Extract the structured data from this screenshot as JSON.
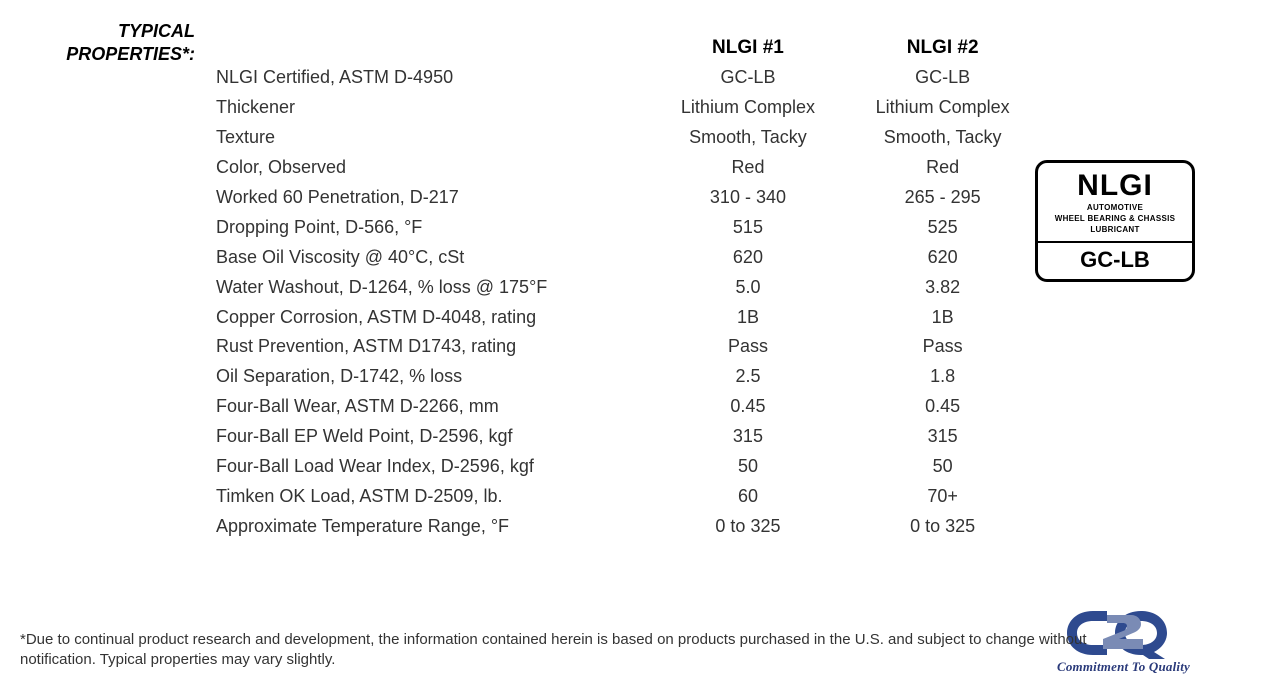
{
  "section_title": "TYPICAL PROPERTIES*:",
  "table": {
    "columns": [
      "NLGI #1",
      "NLGI #2"
    ],
    "rows": [
      {
        "property": "NLGI Certified, ASTM D-4950",
        "v1": "GC-LB",
        "v2": "GC-LB"
      },
      {
        "property": "Thickener",
        "v1": "Lithium Complex",
        "v2": "Lithium Complex"
      },
      {
        "property": "Texture",
        "v1": "Smooth, Tacky",
        "v2": "Smooth, Tacky"
      },
      {
        "property": "Color, Observed",
        "v1": "Red",
        "v2": "Red"
      },
      {
        "property": "Worked 60 Penetration, D-217",
        "v1": "310 - 340",
        "v2": "265 - 295"
      },
      {
        "property": "Dropping Point, D-566, °F",
        "v1": "515",
        "v2": "525"
      },
      {
        "property": "Base Oil Viscosity @ 40°C, cSt",
        "v1": "620",
        "v2": "620"
      },
      {
        "property": "Water Washout, D-1264, % loss @ 175°F",
        "v1": "5.0",
        "v2": "3.82"
      },
      {
        "property": "Copper Corrosion, ASTM D-4048, rating",
        "v1": "1B",
        "v2": "1B"
      },
      {
        "property": "Rust Prevention, ASTM D1743, rating",
        "v1": "Pass",
        "v2": "Pass"
      },
      {
        "property": "Oil Separation, D-1742, % loss",
        "v1": "2.5",
        "v2": "1.8"
      },
      {
        "property": "Four-Ball Wear, ASTM D-2266, mm",
        "v1": "0.45",
        "v2": "0.45"
      },
      {
        "property": "Four-Ball EP Weld Point, D-2596, kgf",
        "v1": "315",
        "v2": "315"
      },
      {
        "property": "Four-Ball Load Wear Index, D-2596, kgf",
        "v1": "50",
        "v2": "50"
      },
      {
        "property": "Timken OK Load, ASTM D-2509, lb.",
        "v1": "60",
        "v2": "70+"
      },
      {
        "property": "Approximate Temperature Range, °F",
        "v1": "0 to 325",
        "v2": "0 to 325"
      }
    ]
  },
  "badge": {
    "brand": "NLGI",
    "line1": "AUTOMOTIVE",
    "line2": "WHEEL BEARING & CHASSIS",
    "line3": "LUBRICANT",
    "code": "GC-LB"
  },
  "footnote": "*Due to continual product research and development, the information contained herein is based on products purchased in the U.S. and subject to change without notification.  Typical properties may vary slightly.",
  "logo": {
    "tagline": "Commitment To Quality",
    "fill_main": "#2e4a8f",
    "fill_shadow": "#6c7ca6"
  },
  "colors": {
    "text": "#333333",
    "heading": "#000000",
    "background": "#ffffff"
  },
  "typography": {
    "body_pt": 18,
    "header_pt": 19,
    "footnote_pt": 15
  }
}
